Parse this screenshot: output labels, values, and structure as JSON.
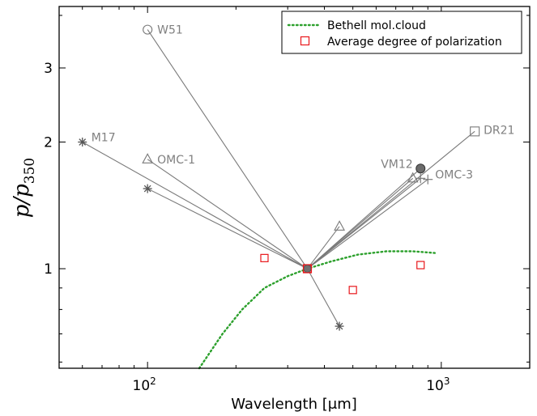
{
  "chart_data": {
    "type": "scatter",
    "xlabel": "Wavelength [μm]",
    "ylabel_main": "p/p",
    "ylabel_sub": "350",
    "xscale": "log",
    "yscale": "log",
    "xlim": [
      50,
      2000
    ],
    "ylim": [
      0.58,
      4.2
    ],
    "xticks": [
      {
        "value": 100,
        "base": "10",
        "exp": "2"
      },
      {
        "value": 1000,
        "base": "10",
        "exp": "3"
      }
    ],
    "yticks": [
      {
        "value": 1,
        "label": "1"
      },
      {
        "value": 2,
        "label": "2"
      },
      {
        "value": 3,
        "label": "3"
      }
    ],
    "legend": {
      "position": "top-right",
      "entries": [
        {
          "label": "Bethell mol.cloud",
          "style": "dotted-line",
          "color": "#2ca02c"
        },
        {
          "label": "Average degree of polarization",
          "style": "square",
          "color": "#e8171b"
        }
      ]
    },
    "reference_point": {
      "x": 350,
      "y": 1.0
    },
    "sources": [
      {
        "name": "W51",
        "marker": "circle",
        "show_label": true,
        "points": [
          {
            "x": 100,
            "y": 3.7
          }
        ]
      },
      {
        "name": "M17",
        "marker": "star",
        "show_label": true,
        "points": [
          {
            "x": 60,
            "y": 2.0
          },
          {
            "x": 100,
            "y": 1.55
          },
          {
            "x": 450,
            "y": 0.73
          }
        ]
      },
      {
        "name": "OMC-1",
        "marker": "triangle",
        "show_label": true,
        "points": [
          {
            "x": 100,
            "y": 1.82
          },
          {
            "x": 450,
            "y": 1.26
          },
          {
            "x": 800,
            "y": 1.64
          }
        ]
      },
      {
        "name": "DR21",
        "marker": "square",
        "show_label": true,
        "points": [
          {
            "x": 1300,
            "y": 2.12
          }
        ]
      },
      {
        "name": "VM12",
        "marker": "filled-circle",
        "show_label": true,
        "points": [
          {
            "x": 850,
            "y": 1.73
          }
        ]
      },
      {
        "name": "OMC-3",
        "marker": "plus",
        "show_label": true,
        "points": [
          {
            "x": 850,
            "y": 1.64
          }
        ]
      },
      {
        "name": "",
        "marker": "plus",
        "show_label": false,
        "points": [
          {
            "x": 900,
            "y": 1.63
          }
        ]
      }
    ],
    "average_polarization": [
      {
        "x": 250,
        "y": 1.06
      },
      {
        "x": 350,
        "y": 1.0
      },
      {
        "x": 500,
        "y": 0.89
      },
      {
        "x": 850,
        "y": 1.02
      }
    ],
    "bethell_curve": [
      {
        "x": 150,
        "y": 0.58
      },
      {
        "x": 180,
        "y": 0.7
      },
      {
        "x": 210,
        "y": 0.8
      },
      {
        "x": 250,
        "y": 0.9
      },
      {
        "x": 300,
        "y": 0.96
      },
      {
        "x": 350,
        "y": 1.0
      },
      {
        "x": 420,
        "y": 1.04
      },
      {
        "x": 520,
        "y": 1.08
      },
      {
        "x": 650,
        "y": 1.1
      },
      {
        "x": 800,
        "y": 1.1
      },
      {
        "x": 950,
        "y": 1.09
      }
    ],
    "grid": false
  }
}
